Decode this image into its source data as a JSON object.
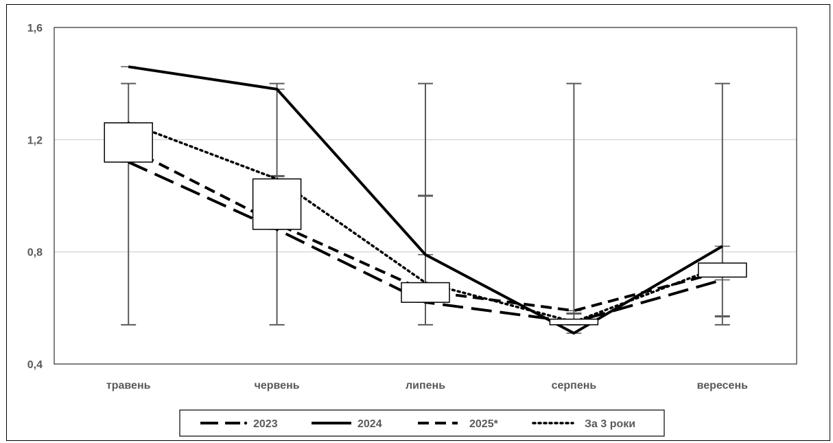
{
  "chart_data": {
    "type": "line",
    "categories": [
      "травень",
      "червень",
      "липень",
      "серпень",
      "вересень"
    ],
    "ylim": [
      0.4,
      1.6
    ],
    "yticks": [
      0.4,
      0.8,
      1.2,
      1.6
    ],
    "ytick_labels": [
      "0,4",
      "0,8",
      "1,2",
      "1,6"
    ],
    "grid": true,
    "legend_position": "bottom",
    "series": [
      {
        "name": "2023",
        "values": [
          1.12,
          0.88,
          0.62,
          0.55,
          0.7
        ],
        "dash": "long-dash"
      },
      {
        "name": "2024",
        "values": [
          1.46,
          1.38,
          0.79,
          0.51,
          0.82
        ],
        "dash": "solid"
      },
      {
        "name": "2025*",
        "values": [
          1.17,
          0.9,
          0.66,
          0.59,
          0.73
        ],
        "dash": "dash"
      },
      {
        "name": "За 3 роки",
        "values": [
          1.26,
          1.06,
          0.69,
          0.55,
          0.75
        ],
        "dash": "dot"
      }
    ],
    "range_bars": {
      "high": [
        1.4,
        1.4,
        1.4,
        1.4,
        1.4
      ],
      "low": [
        0.54,
        0.54,
        0.54,
        0.54,
        0.54
      ],
      "markers": [
        1.15,
        1.07,
        1.0,
        0.58,
        0.57
      ]
    },
    "boxes": [
      {
        "low": 1.12,
        "high": 1.26
      },
      {
        "low": 0.88,
        "high": 1.06
      },
      {
        "low": 0.62,
        "high": 0.69
      },
      {
        "low": 0.54,
        "high": 0.56
      },
      {
        "low": 0.71,
        "high": 0.76
      }
    ],
    "colors": {
      "line": "#000000",
      "grid": "#d9d9d9",
      "range": "#595959",
      "text": "#595959"
    }
  }
}
